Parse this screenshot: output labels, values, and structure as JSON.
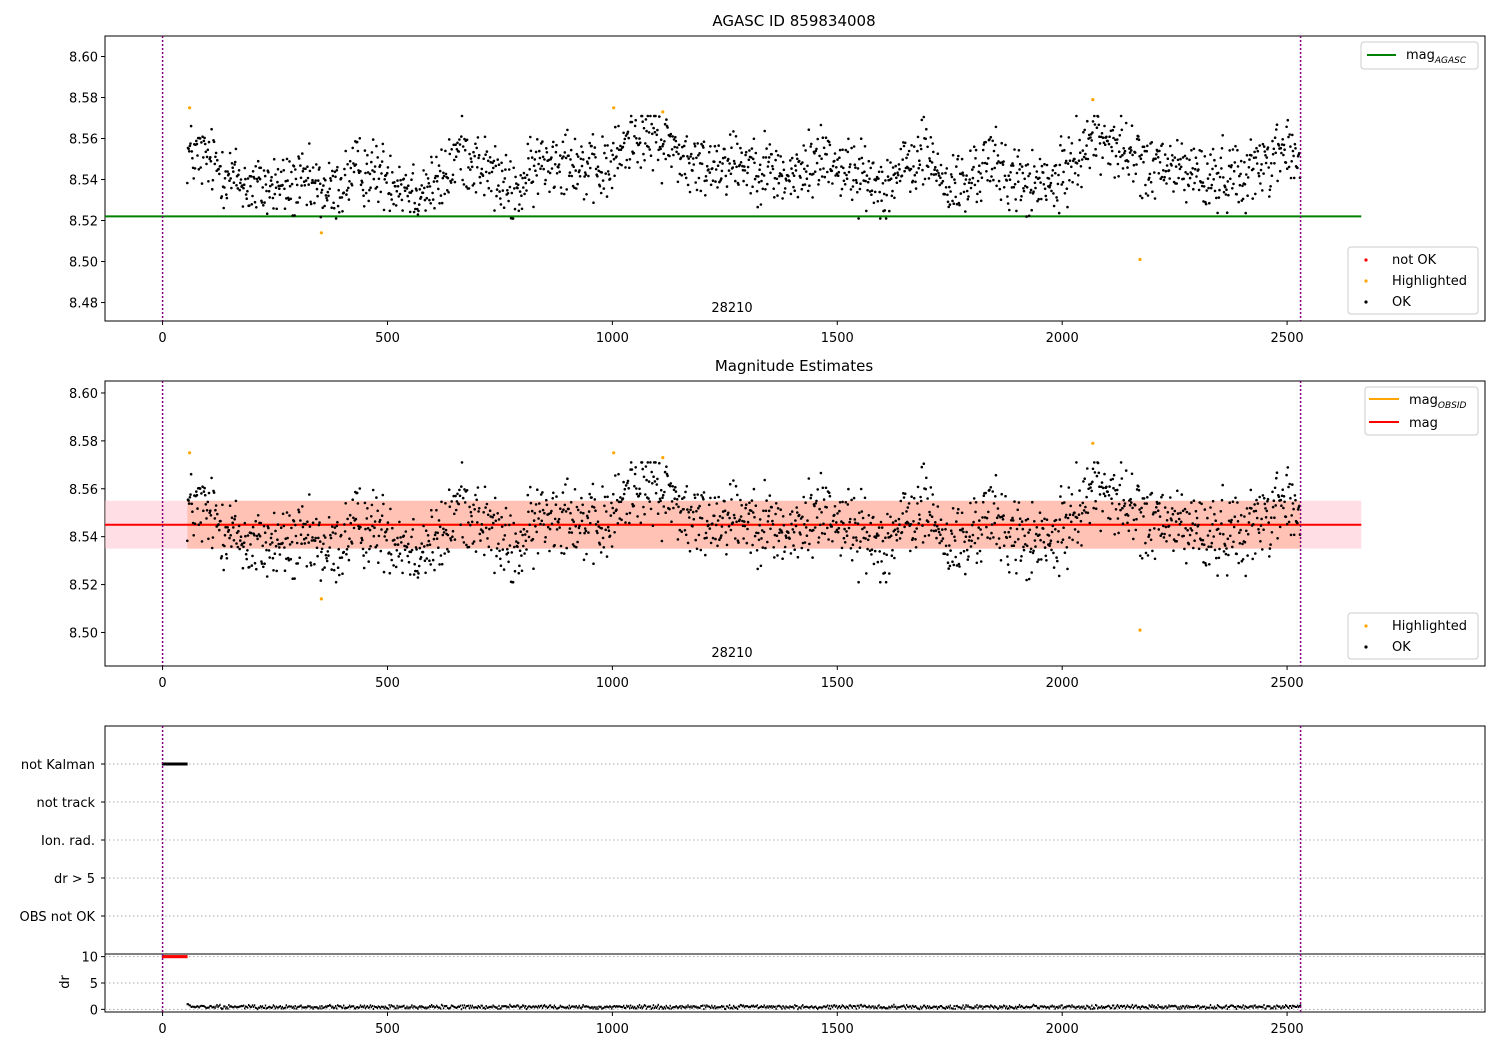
{
  "colors": {
    "ok": "#000000",
    "not_ok": "#ff0000",
    "highlighted": "#ffa500",
    "mag_agasc_line": "#008000",
    "mag_obsid_line": "#ffa500",
    "mag_line": "#ff0000",
    "obs_boundary": "#800080",
    "band_mag_obsid": "#ffa07a",
    "band_mag": "#ffc0cb"
  },
  "chart_data": [
    {
      "type": "scatter",
      "title": "AGASC ID 859834008",
      "xlabel": "",
      "ylabel": "",
      "xlim": [
        -128,
        2940
      ],
      "ylim": [
        8.471,
        8.61
      ],
      "xticks": [
        0,
        500,
        1000,
        1500,
        2000,
        2500
      ],
      "yticks": [
        8.48,
        8.5,
        8.52,
        8.54,
        8.56,
        8.58,
        8.6
      ],
      "obsid_label": "28210",
      "obs_boundaries": [
        0,
        2530
      ],
      "reference_lines": [
        {
          "name": "mag",
          "sub": "AGASC",
          "value": 8.522,
          "x_range": [
            -128,
            2665
          ],
          "color": "#008000"
        }
      ],
      "series": [
        {
          "name": "not OK",
          "color": "#ff0000",
          "points": []
        },
        {
          "name": "Highlighted",
          "color": "#ffa500",
          "points": [
            [
              60,
              8.575
            ],
            [
              353,
              8.514
            ],
            [
              1003,
              8.575
            ],
            [
              1112,
              8.573
            ],
            [
              2068,
              8.579
            ],
            [
              2173,
              8.501
            ]
          ]
        },
        {
          "name": "OK",
          "color": "#000000",
          "model": "dense scatter, 1 sample per ~1.4 s from x=55 to x=2530, values 8.52–8.57",
          "profile": [
            [
              55,
              8.553
            ],
            [
              100,
              8.55
            ],
            [
              150,
              8.542
            ],
            [
              200,
              8.536
            ],
            [
              260,
              8.537
            ],
            [
              330,
              8.537
            ],
            [
              380,
              8.533
            ],
            [
              430,
              8.545
            ],
            [
              500,
              8.542
            ],
            [
              560,
              8.535
            ],
            [
              620,
              8.538
            ],
            [
              660,
              8.554
            ],
            [
              720,
              8.545
            ],
            [
              780,
              8.532
            ],
            [
              840,
              8.548
            ],
            [
              900,
              8.552
            ],
            [
              950,
              8.543
            ],
            [
              990,
              8.545
            ],
            [
              1050,
              8.563
            ],
            [
              1130,
              8.557
            ],
            [
              1180,
              8.545
            ],
            [
              1260,
              8.55
            ],
            [
              1330,
              8.547
            ],
            [
              1400,
              8.54
            ],
            [
              1470,
              8.552
            ],
            [
              1520,
              8.545
            ],
            [
              1600,
              8.537
            ],
            [
              1650,
              8.545
            ],
            [
              1700,
              8.553
            ],
            [
              1740,
              8.537
            ],
            [
              1790,
              8.537
            ],
            [
              1830,
              8.55
            ],
            [
              1880,
              8.542
            ],
            [
              1930,
              8.537
            ],
            [
              1990,
              8.538
            ],
            [
              2030,
              8.552
            ],
            [
              2080,
              8.562
            ],
            [
              2140,
              8.553
            ],
            [
              2200,
              8.545
            ],
            [
              2280,
              8.545
            ],
            [
              2320,
              8.54
            ],
            [
              2380,
              8.543
            ],
            [
              2430,
              8.545
            ],
            [
              2490,
              8.556
            ],
            [
              2530,
              8.548
            ]
          ]
        }
      ],
      "legend_lines": "top-right",
      "legend_points": "bottom-right"
    },
    {
      "type": "scatter",
      "title": "Magnitude Estimates",
      "xlabel": "",
      "ylabel": "",
      "xlim": [
        -128,
        2940
      ],
      "ylim": [
        8.486,
        8.605
      ],
      "xticks": [
        0,
        500,
        1000,
        1500,
        2000,
        2500
      ],
      "yticks": [
        8.5,
        8.52,
        8.54,
        8.56,
        8.58,
        8.6
      ],
      "obsid_label": "28210",
      "obs_boundaries": [
        0,
        2530
      ],
      "reference_lines": [
        {
          "name": "mag",
          "sub": "OBSID",
          "value": 8.545,
          "x_range": [
            55,
            2530
          ],
          "color": "#ffa500",
          "band": [
            8.535,
            8.555
          ]
        },
        {
          "name": "mag",
          "sub": "",
          "value": 8.545,
          "x_range": [
            -128,
            2665
          ],
          "color": "#ff0000",
          "band": [
            8.535,
            8.555
          ]
        }
      ],
      "series": [
        {
          "name": "Highlighted",
          "color": "#ffa500",
          "points": [
            [
              60,
              8.575
            ],
            [
              353,
              8.514
            ],
            [
              1003,
              8.575
            ],
            [
              1112,
              8.573
            ],
            [
              2068,
              8.579
            ],
            [
              2173,
              8.501
            ]
          ]
        },
        {
          "name": "OK",
          "color": "#000000",
          "model": "same samples as top panel"
        }
      ],
      "legend_lines": "top-right",
      "legend_points": "bottom-right"
    },
    {
      "type": "scatter",
      "title": "",
      "xlim": [
        -128,
        2940
      ],
      "ylim": [
        -0.5,
        5.5
      ],
      "flag_labels": [
        "not Kalman",
        "not track",
        "Ion. rad.",
        "dr > 5",
        "OBS not OK"
      ],
      "flags": [
        {
          "label": "not Kalman",
          "x_range": [
            0,
            55
          ],
          "color": "#000000"
        }
      ],
      "obs_boundaries": [
        0,
        2530
      ]
    },
    {
      "type": "scatter",
      "title": "",
      "xlabel": "",
      "ylabel": "dr",
      "xlim": [
        -128,
        2940
      ],
      "ylim": [
        -0.5,
        10.5
      ],
      "xticks": [
        0,
        500,
        1000,
        1500,
        2000,
        2500
      ],
      "yticks": [
        0,
        5,
        10
      ],
      "obs_boundaries": [
        0,
        2530
      ],
      "series": [
        {
          "name": "dr",
          "color": "#ff0000",
          "points": [
            [
              0,
              10
            ],
            [
              55,
              10
            ]
          ],
          "model": "capped at 10 for x in [0,55]"
        },
        {
          "name": "dr",
          "color": "#000000",
          "model": "values 0–1 for x in [55,2530]"
        }
      ]
    }
  ]
}
